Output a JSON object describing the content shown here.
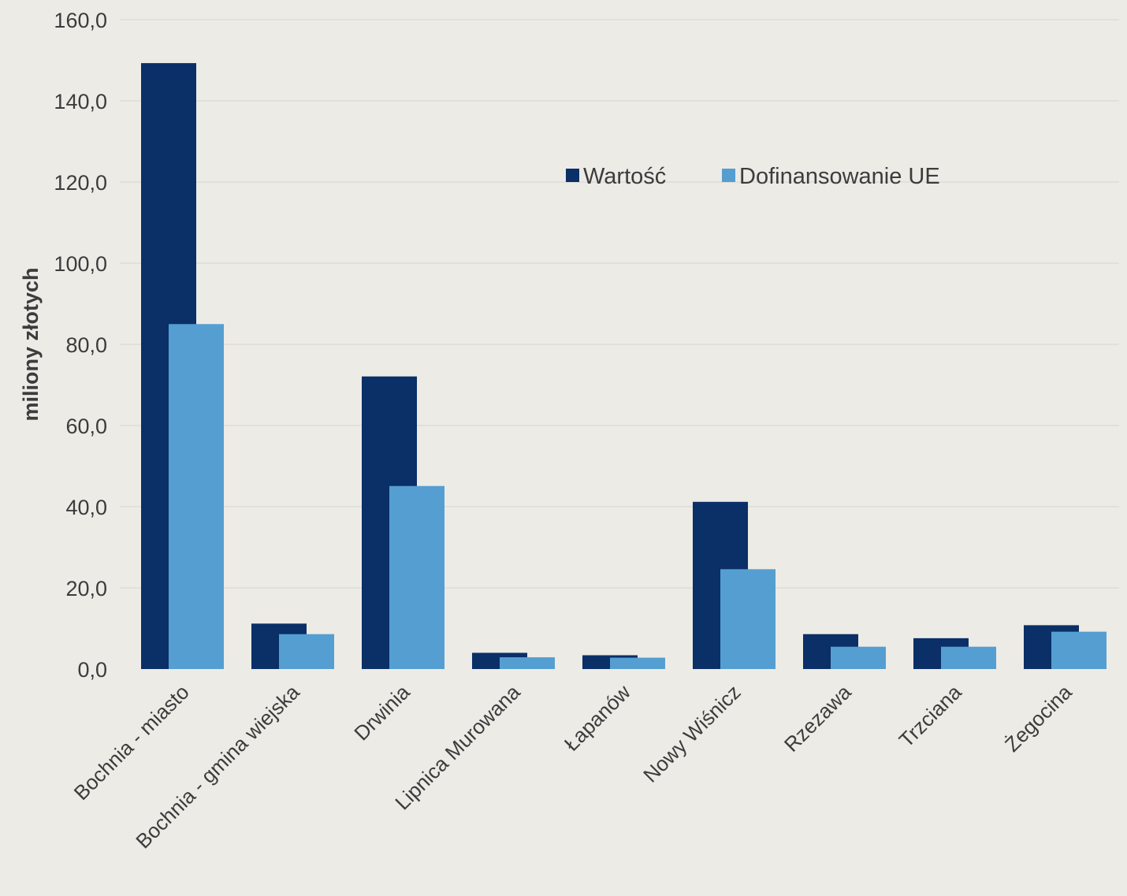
{
  "chart_data": {
    "type": "bar",
    "ylabel": "miliony złotych",
    "xlabel": "",
    "ylim": [
      0,
      160
    ],
    "y_ticks": [
      "0,0",
      "20,0",
      "40,0",
      "60,0",
      "80,0",
      "100,0",
      "120,0",
      "140,0",
      "160,0"
    ],
    "y_tick_values": [
      0,
      20,
      40,
      60,
      80,
      100,
      120,
      140,
      160
    ],
    "grid": "horizontal",
    "legend_position": "top-right",
    "categories": [
      "Bochnia - miasto",
      "Bochnia - gmina wiejska",
      "Drwinia",
      "Lipnica Murowana",
      "Łapanów",
      "Nowy Wiśnicz",
      "Rzezawa",
      "Trzciana",
      "Żegocina"
    ],
    "series": [
      {
        "name": "Wartość",
        "color": "#0b2f67",
        "values": [
          149.3,
          11.2,
          72.1,
          4.0,
          3.4,
          41.2,
          8.6,
          7.6,
          10.8
        ]
      },
      {
        "name": "Dofinansowanie UE",
        "color": "#559ed1",
        "values": [
          85.0,
          8.6,
          45.1,
          2.9,
          2.8,
          24.6,
          5.5,
          5.5,
          9.2
        ]
      }
    ]
  }
}
